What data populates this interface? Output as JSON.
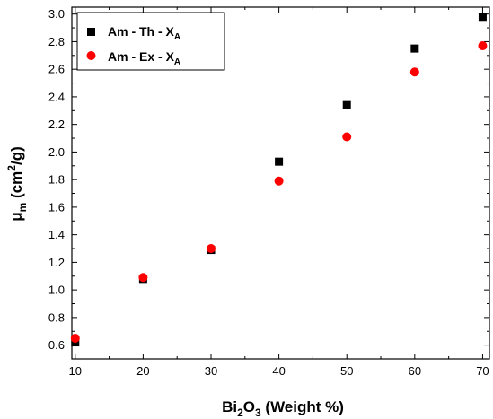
{
  "chart_data": {
    "type": "scatter",
    "title": "",
    "xlabel": {
      "base": "Bi",
      "sub1": "2",
      "mid": "O",
      "sub2": "3",
      "rest": " (Weight %)"
    },
    "ylabel": {
      "base": "μ",
      "sub": "m",
      "mid": " (cm",
      "sup": "2",
      "rest": "/g)"
    },
    "xlim": [
      9.5,
      71
    ],
    "ylim": [
      0.5,
      3.05
    ],
    "xticks": [
      "10",
      "20",
      "30",
      "40",
      "50",
      "60",
      "70"
    ],
    "yticks": [
      "0.6",
      "0.8",
      "1.0",
      "1.2",
      "1.4",
      "1.6",
      "1.8",
      "2.0",
      "2.2",
      "2.4",
      "2.6",
      "2.8",
      "3.0"
    ],
    "legend_position": "top-left",
    "series": [
      {
        "name": {
          "base": "Am - Th - X",
          "sub": "A"
        },
        "marker": "square",
        "color": "#000000",
        "x": [
          10,
          20,
          30,
          40,
          50,
          60,
          70
        ],
        "y": [
          0.62,
          1.08,
          1.29,
          1.93,
          2.34,
          2.75,
          2.98
        ]
      },
      {
        "name": {
          "base": "Am - Ex - X",
          "sub": "A"
        },
        "marker": "circle",
        "color": "#ff0000",
        "x": [
          10,
          20,
          30,
          40,
          50,
          60,
          70
        ],
        "y": [
          0.65,
          1.09,
          1.3,
          1.79,
          2.11,
          2.58,
          2.77
        ]
      }
    ]
  }
}
